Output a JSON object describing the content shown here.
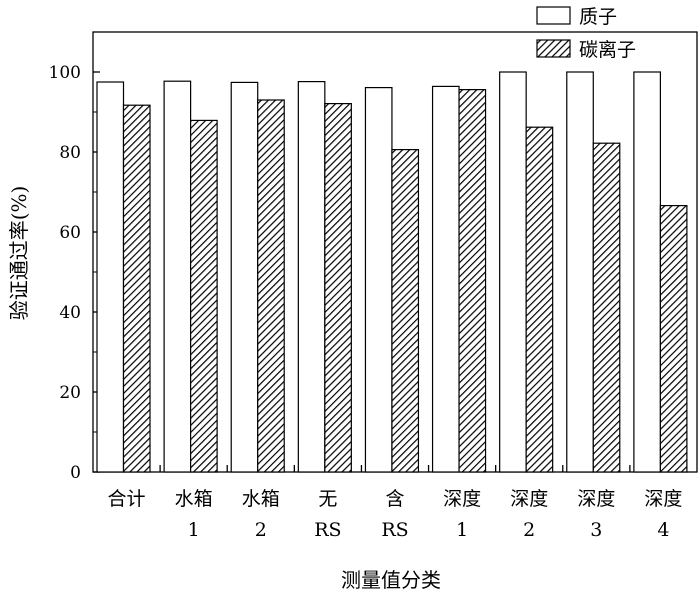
{
  "chart_data": {
    "type": "bar",
    "title": "",
    "xlabel": "测量值分类",
    "ylabel": "验证通过率(%)",
    "ylim": [
      0,
      110
    ],
    "yticks": [
      0,
      20,
      40,
      60,
      80,
      100
    ],
    "grid": false,
    "legend_position": "top-right",
    "categories": [
      [
        "合计"
      ],
      [
        "水箱",
        "1"
      ],
      [
        "水箱",
        "2"
      ],
      [
        "无",
        "RS"
      ],
      [
        "含",
        "RS"
      ],
      [
        "深度",
        "1"
      ],
      [
        "深度",
        "2"
      ],
      [
        "深度",
        "3"
      ],
      [
        "深度",
        "4"
      ]
    ],
    "series": [
      {
        "name": "质子",
        "fill": "#ffffff",
        "pattern": "none",
        "values": [
          97.5,
          97.7,
          97.4,
          97.6,
          96.1,
          96.4,
          100,
          100,
          100
        ]
      },
      {
        "name": "碳离子",
        "fill": "#000000",
        "pattern": "diagonal-hatch",
        "values": [
          91.7,
          87.9,
          93.0,
          92.1,
          80.6,
          95.6,
          86.2,
          82.2,
          66.6
        ]
      }
    ]
  }
}
